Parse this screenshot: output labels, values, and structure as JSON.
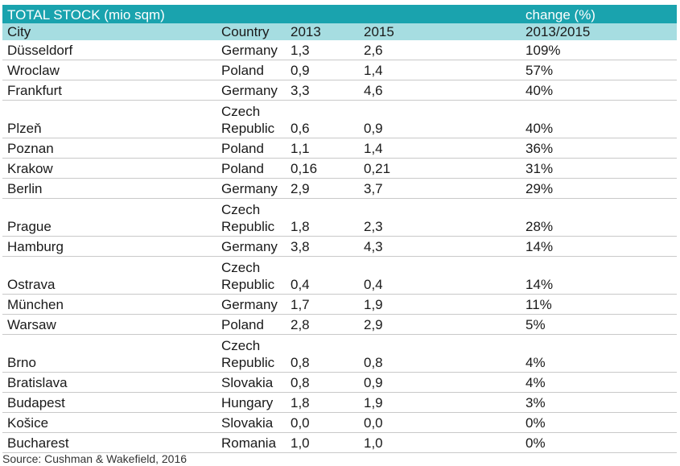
{
  "table": {
    "title": "TOTAL STOCK (mio sqm)",
    "change_header": "change (%)",
    "columns": [
      "City",
      "Country",
      "2013",
      "2015",
      "2013/2015"
    ],
    "rows": [
      {
        "city": "Düsseldorf",
        "country": "Germany",
        "y2013": "1,3",
        "y2015": "2,6",
        "change": "109%"
      },
      {
        "city": "Wroclaw",
        "country": "Poland",
        "y2013": "0,9",
        "y2015": "1,4",
        "change": "57%"
      },
      {
        "city": "Frankfurt",
        "country": "Germany",
        "y2013": "3,3",
        "y2015": "4,6",
        "change": "40%"
      },
      {
        "city": "Plzeň",
        "country": "Czech Republic",
        "y2013": "0,6",
        "y2015": "0,9",
        "change": "40%"
      },
      {
        "city": "Poznan",
        "country": "Poland",
        "y2013": "1,1",
        "y2015": "1,4",
        "change": "36%"
      },
      {
        "city": "Krakow",
        "country": "Poland",
        "y2013": "0,16",
        "y2015": "0,21",
        "change": "31%"
      },
      {
        "city": "Berlin",
        "country": "Germany",
        "y2013": "2,9",
        "y2015": "3,7",
        "change": "29%"
      },
      {
        "city": "Prague",
        "country": "Czech Republic",
        "y2013": "1,8",
        "y2015": "2,3",
        "change": "28%"
      },
      {
        "city": "Hamburg",
        "country": "Germany",
        "y2013": "3,8",
        "y2015": "4,3",
        "change": "14%"
      },
      {
        "city": "Ostrava",
        "country": "Czech Republic",
        "y2013": "0,4",
        "y2015": "0,4",
        "change": "14%"
      },
      {
        "city": "München",
        "country": "Germany",
        "y2013": "1,7",
        "y2015": "1,9",
        "change": "11%"
      },
      {
        "city": "Warsaw",
        "country": "Poland",
        "y2013": "2,8",
        "y2015": "2,9",
        "change": "5%"
      },
      {
        "city": "Brno",
        "country": "Czech Republic",
        "y2013": "0,8",
        "y2015": "0,8",
        "change": "4%"
      },
      {
        "city": "Bratislava",
        "country": "Slovakia",
        "y2013": "0,8",
        "y2015": "0,9",
        "change": "4%"
      },
      {
        "city": "Budapest",
        "country": "Hungary",
        "y2013": "1,8",
        "y2015": "1,9",
        "change": "3%"
      },
      {
        "city": "Košice",
        "country": "Slovakia",
        "y2013": "0,0",
        "y2015": "0,0",
        "change": "0%"
      },
      {
        "city": "Bucharest",
        "country": "Romania",
        "y2013": "1,0",
        "y2015": "1,0",
        "change": "0%"
      }
    ],
    "source": "Source: Cushman & Wakefield, 2016"
  },
  "colors": {
    "title_bg": "#1aa3ae",
    "header_bg": "#a6dde1",
    "row_border": "#c9c9c9"
  }
}
